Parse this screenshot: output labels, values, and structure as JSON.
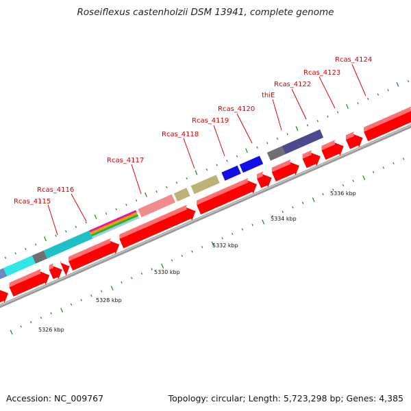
{
  "title": "Roseiflexus castenholzii DSM 13941, complete genome",
  "footer": {
    "accession": "Accession: NC_009767",
    "stats": "Topology: circular; Length: 5,723,298 bp; Genes: 4,385"
  },
  "colors": {
    "cds": "#ff0000",
    "backbone": "#9a9a9a",
    "tick": "#2a8a2a",
    "label": "#cc0000",
    "cyan": "#33e6e6",
    "teal": "#20c0c8",
    "slate": "#6a8abf",
    "gray": "#6f6f6f",
    "salmon": "#f08c8c",
    "khaki": "#bdb276",
    "blue": "#1010e6",
    "navy": "#4b4a8f"
  },
  "axis": {
    "kbp_ticks": [
      "5326 kbp",
      "5328 kbp",
      "5330 kbp",
      "5332 kbp",
      "5334 kbp",
      "5336 kbp"
    ]
  },
  "genes": [
    "Rcas_4115",
    "Rcas_4116",
    "Rcas_4117",
    "Rcas_4118",
    "Rcas_4119",
    "Rcas_4120",
    "thiE",
    "Rcas_4122",
    "Rcas_4123",
    "Rcas_4124"
  ],
  "cog_segments": [
    {
      "start": 0.0,
      "end": 0.08,
      "color": "slate"
    },
    {
      "start": 0.08,
      "end": 0.215,
      "color": "cyan"
    },
    {
      "start": 0.215,
      "end": 0.27,
      "color": "gray"
    },
    {
      "start": 0.27,
      "end": 0.485,
      "color": "teal"
    },
    {
      "start": 0.485,
      "end": 0.705,
      "color": "multi"
    },
    {
      "start": 0.715,
      "end": 0.875,
      "color": "salmon"
    },
    {
      "start": 0.885,
      "end": 0.945,
      "color": "khaki"
    },
    {
      "start": 0.965,
      "end": 1.085,
      "color": "khaki"
    },
    {
      "start": 1.11,
      "end": 1.185,
      "color": "blue"
    },
    {
      "start": 1.195,
      "end": 1.29,
      "color": "blue"
    },
    {
      "start": 1.325,
      "end": 1.395,
      "color": "gray"
    },
    {
      "start": 1.395,
      "end": 1.575,
      "color": "navy"
    }
  ],
  "cds_arrows": [
    {
      "start": -0.02,
      "end": 0.055
    },
    {
      "start": 0.07,
      "end": 0.25
    },
    {
      "start": 0.258,
      "end": 0.31
    },
    {
      "start": 0.315,
      "end": 0.345
    },
    {
      "start": 0.35,
      "end": 0.58
    },
    {
      "start": 0.59,
      "end": 0.94
    },
    {
      "start": 0.955,
      "end": 1.23
    },
    {
      "start": 1.24,
      "end": 1.3
    },
    {
      "start": 1.31,
      "end": 1.43
    },
    {
      "start": 1.455,
      "end": 1.53
    },
    {
      "start": 1.545,
      "end": 1.64
    },
    {
      "start": 1.66,
      "end": 1.73
    },
    {
      "start": 1.745,
      "end": 2.0
    }
  ]
}
